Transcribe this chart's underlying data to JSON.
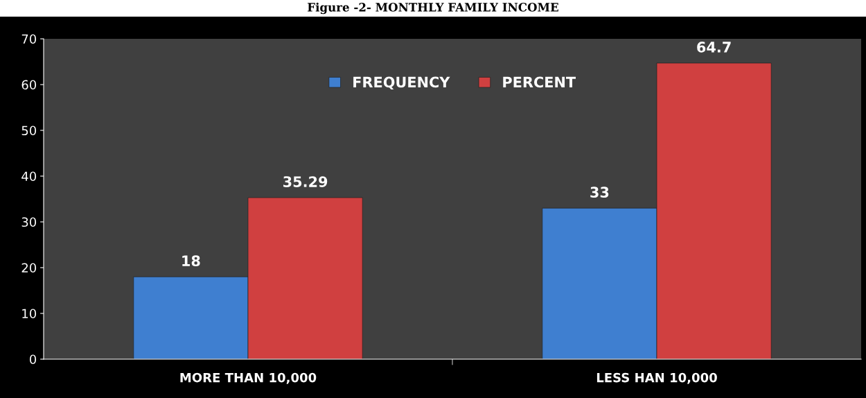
{
  "chart_data": {
    "type": "bar",
    "title": "Figure -2- MONTHLY FAMILY INCOME",
    "categories": [
      "MORE THAN 10,000",
      "LESS HAN 10,000"
    ],
    "series": [
      {
        "name": "FREQUENCY",
        "color": "#3f7fd0",
        "values": [
          18,
          33
        ]
      },
      {
        "name": "PERCENT",
        "color": "#d04040",
        "values": [
          35.29,
          64.7
        ]
      }
    ],
    "ylim": [
      0,
      70
    ],
    "yticks": [
      0,
      10,
      20,
      30,
      40,
      50,
      60,
      70
    ],
    "data_labels": true,
    "legend": "top",
    "grid": false
  }
}
